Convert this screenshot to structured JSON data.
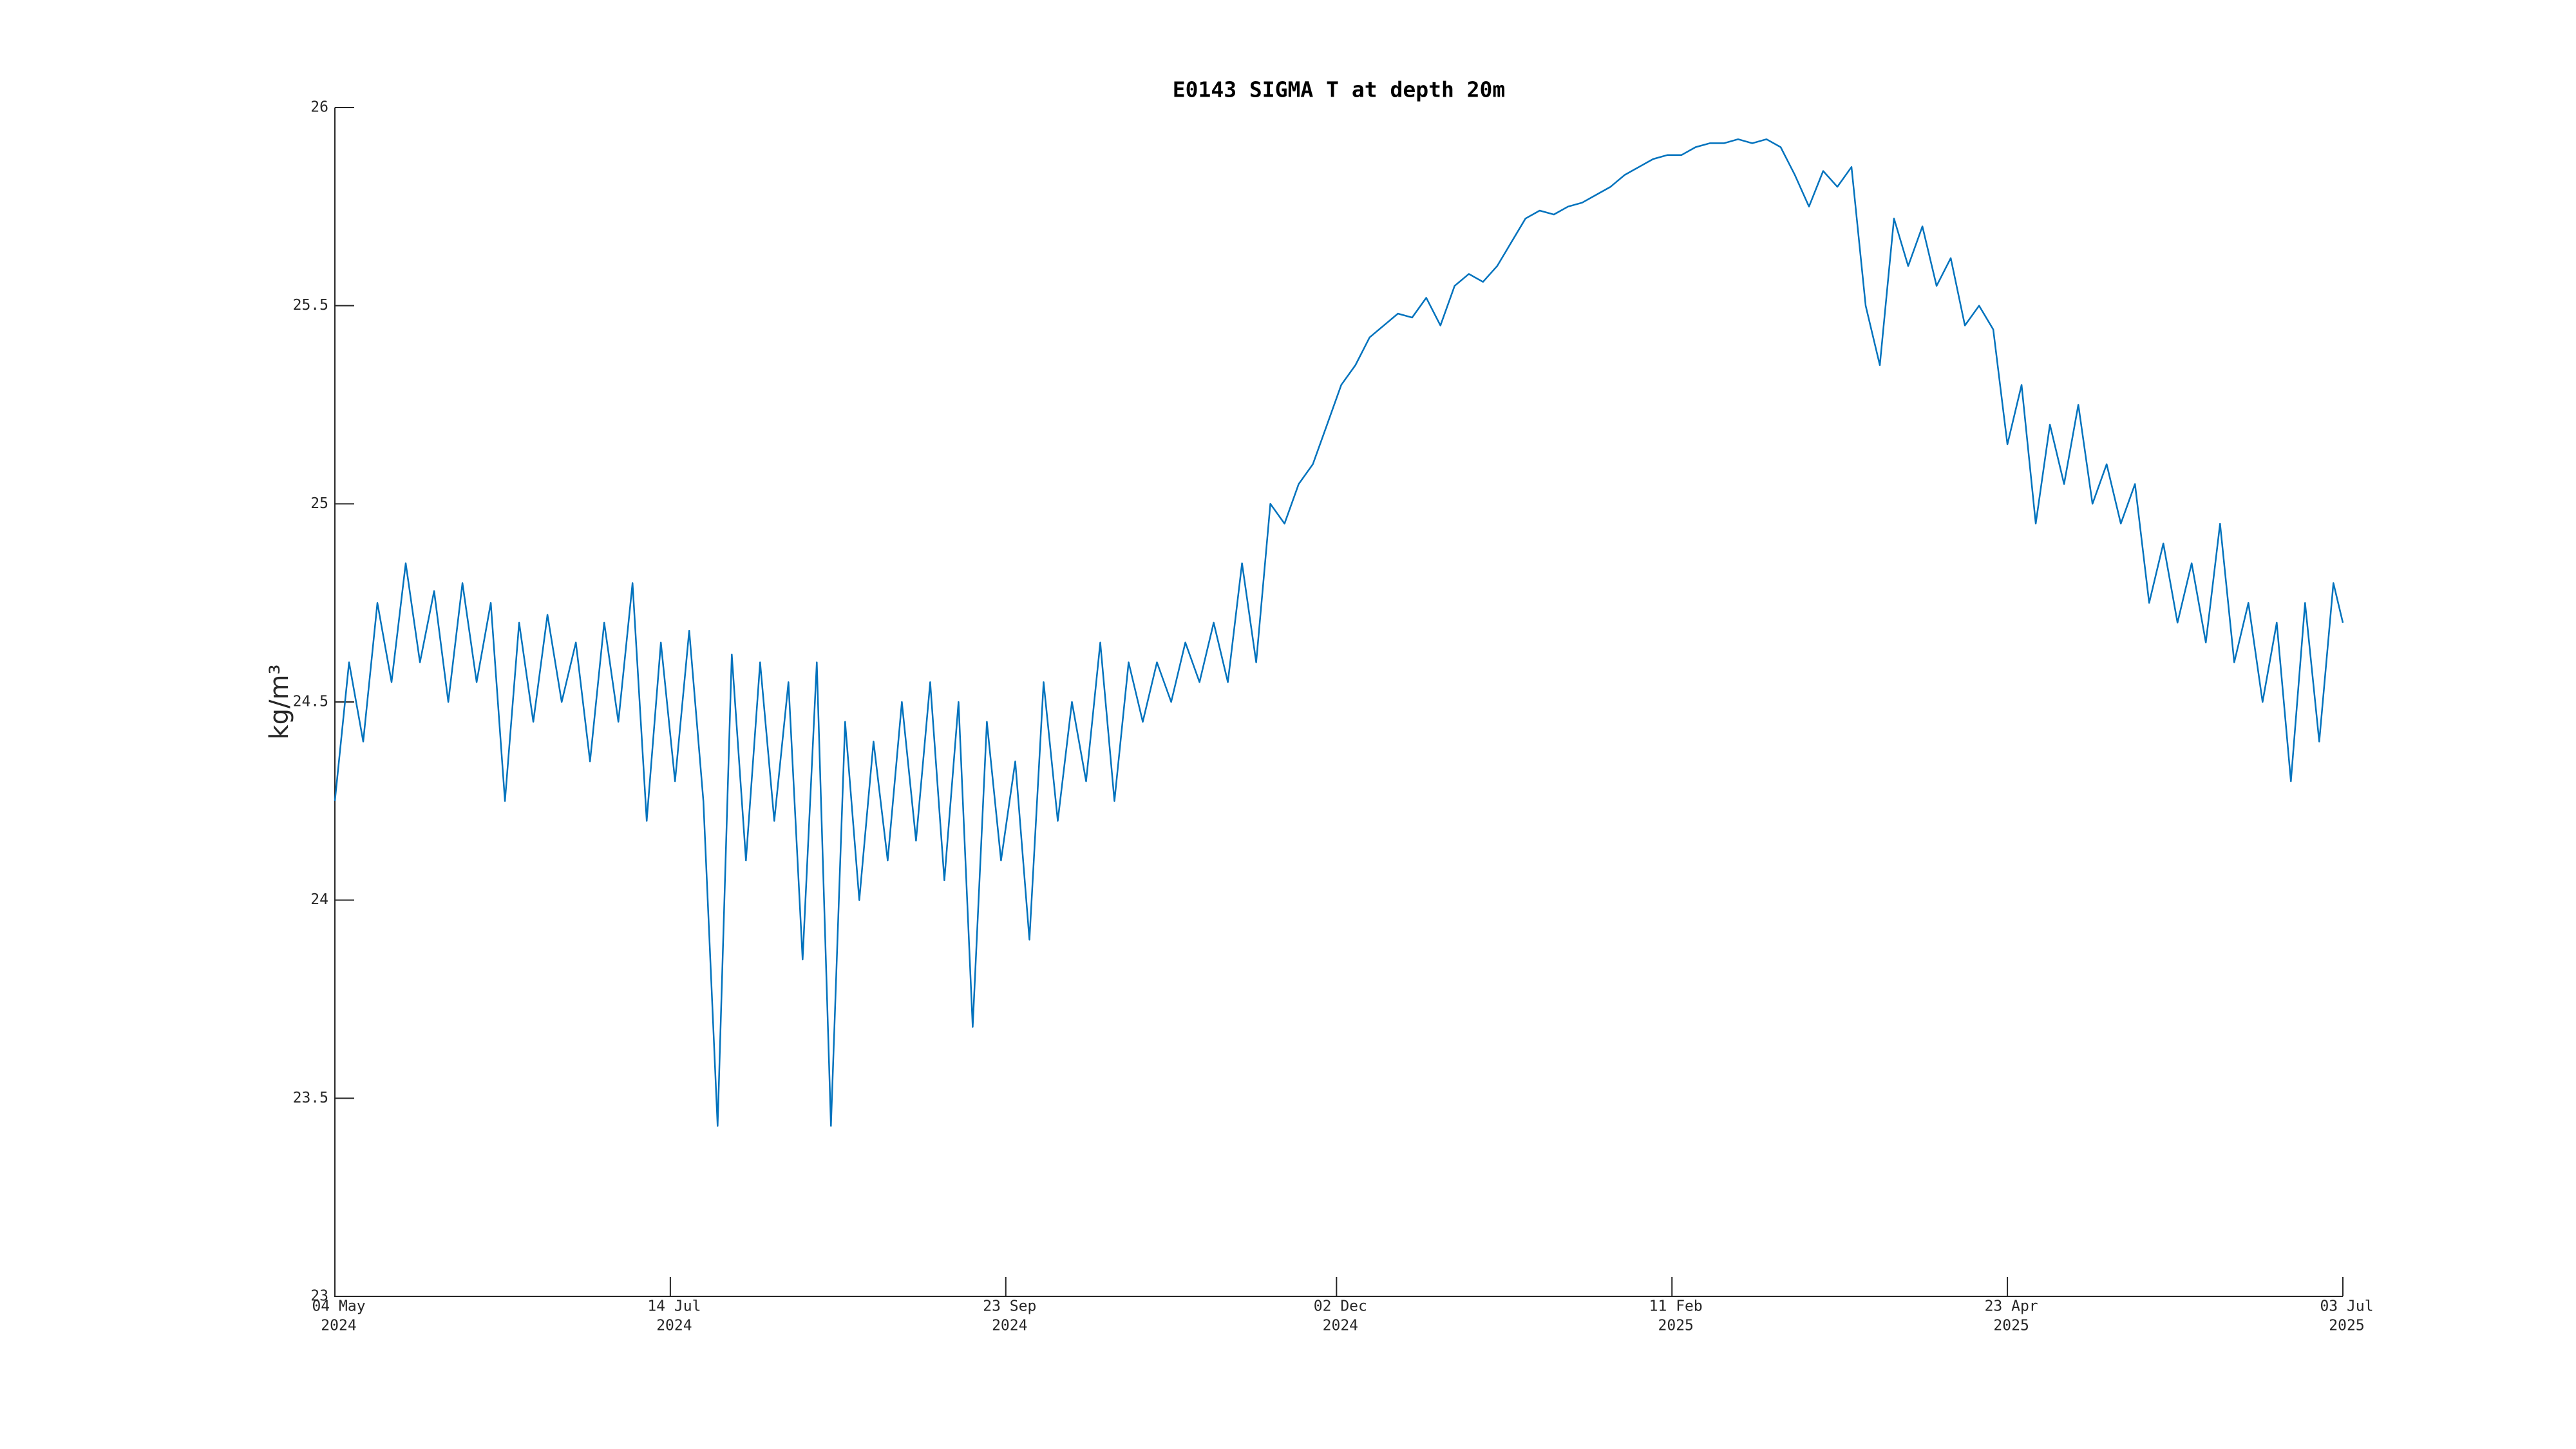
{
  "chart_data": {
    "type": "line",
    "title": "E0143 SIGMA T at depth 20m",
    "ylabel": "kg/m³",
    "color": "#0072BD",
    "xlim": [
      "2024-05-04",
      "2025-07-03"
    ],
    "xticks": [
      {
        "value": "2024-05-04",
        "label": [
          "04 May",
          "2024"
        ]
      },
      {
        "value": "2024-07-14",
        "label": [
          "14 Jul",
          "2024"
        ]
      },
      {
        "value": "2024-09-23",
        "label": [
          "23 Sep",
          "2024"
        ]
      },
      {
        "value": "2024-12-02",
        "label": [
          "02 Dec",
          "2024"
        ]
      },
      {
        "value": "2025-02-11",
        "label": [
          "11 Feb",
          "2025"
        ]
      },
      {
        "value": "2025-04-23",
        "label": [
          "23 Apr",
          "2025"
        ]
      },
      {
        "value": "2025-07-03",
        "label": [
          "03 Jul",
          "2025"
        ]
      }
    ],
    "ylim": [
      23,
      26
    ],
    "yticks": [
      23,
      23.5,
      24,
      24.5,
      25,
      25.5,
      26
    ],
    "x": [
      "2024-05-04",
      "2024-05-07",
      "2024-05-10",
      "2024-05-13",
      "2024-05-16",
      "2024-05-19",
      "2024-05-22",
      "2024-05-25",
      "2024-05-28",
      "2024-05-31",
      "2024-06-03",
      "2024-06-06",
      "2024-06-09",
      "2024-06-12",
      "2024-06-15",
      "2024-06-18",
      "2024-06-21",
      "2024-06-24",
      "2024-06-27",
      "2024-06-30",
      "2024-07-03",
      "2024-07-06",
      "2024-07-09",
      "2024-07-12",
      "2024-07-15",
      "2024-07-18",
      "2024-07-21",
      "2024-07-24",
      "2024-07-27",
      "2024-07-30",
      "2024-08-02",
      "2024-08-05",
      "2024-08-08",
      "2024-08-11",
      "2024-08-14",
      "2024-08-17",
      "2024-08-20",
      "2024-08-23",
      "2024-08-26",
      "2024-08-29",
      "2024-09-01",
      "2024-09-04",
      "2024-09-07",
      "2024-09-10",
      "2024-09-13",
      "2024-09-16",
      "2024-09-19",
      "2024-09-22",
      "2024-09-25",
      "2024-09-28",
      "2024-10-01",
      "2024-10-04",
      "2024-10-07",
      "2024-10-10",
      "2024-10-13",
      "2024-10-16",
      "2024-10-19",
      "2024-10-22",
      "2024-10-25",
      "2024-10-28",
      "2024-10-31",
      "2024-11-03",
      "2024-11-06",
      "2024-11-09",
      "2024-11-12",
      "2024-11-15",
      "2024-11-18",
      "2024-11-21",
      "2024-11-24",
      "2024-11-27",
      "2024-11-30",
      "2024-12-03",
      "2024-12-06",
      "2024-12-09",
      "2024-12-12",
      "2024-12-15",
      "2024-12-18",
      "2024-12-21",
      "2024-12-24",
      "2024-12-27",
      "2024-12-30",
      "2025-01-02",
      "2025-01-05",
      "2025-01-08",
      "2025-01-11",
      "2025-01-14",
      "2025-01-17",
      "2025-01-20",
      "2025-01-23",
      "2025-01-26",
      "2025-01-29",
      "2025-02-01",
      "2025-02-04",
      "2025-02-07",
      "2025-02-10",
      "2025-02-13",
      "2025-02-16",
      "2025-02-19",
      "2025-02-22",
      "2025-02-25",
      "2025-02-28",
      "2025-03-03",
      "2025-03-06",
      "2025-03-09",
      "2025-03-12",
      "2025-03-15",
      "2025-03-18",
      "2025-03-21",
      "2025-03-24",
      "2025-03-27",
      "2025-03-30",
      "2025-04-02",
      "2025-04-05",
      "2025-04-08",
      "2025-04-11",
      "2025-04-14",
      "2025-04-17",
      "2025-04-20",
      "2025-04-23",
      "2025-04-26",
      "2025-04-29",
      "2025-05-02",
      "2025-05-05",
      "2025-05-08",
      "2025-05-11",
      "2025-05-14",
      "2025-05-17",
      "2025-05-20",
      "2025-05-23",
      "2025-05-26",
      "2025-05-29",
      "2025-06-01",
      "2025-06-04",
      "2025-06-07",
      "2025-06-10",
      "2025-06-13",
      "2025-06-16",
      "2025-06-19",
      "2025-06-22",
      "2025-06-25",
      "2025-06-28",
      "2025-07-01",
      "2025-07-03"
    ],
    "values": [
      24.25,
      24.6,
      24.4,
      24.75,
      24.55,
      24.85,
      24.6,
      24.78,
      24.5,
      24.8,
      24.55,
      24.75,
      24.25,
      24.7,
      24.45,
      24.72,
      24.5,
      24.65,
      24.35,
      24.7,
      24.45,
      24.8,
      24.2,
      24.65,
      24.3,
      24.68,
      24.25,
      23.43,
      24.62,
      24.1,
      24.6,
      24.2,
      24.55,
      23.85,
      24.6,
      23.43,
      24.45,
      24.0,
      24.4,
      24.1,
      24.5,
      24.15,
      24.55,
      24.05,
      24.5,
      23.68,
      24.45,
      24.1,
      24.35,
      23.9,
      24.55,
      24.2,
      24.5,
      24.3,
      24.65,
      24.25,
      24.6,
      24.45,
      24.6,
      24.5,
      24.65,
      24.55,
      24.7,
      24.55,
      24.85,
      24.6,
      25.0,
      24.95,
      25.05,
      25.1,
      25.2,
      25.3,
      25.35,
      25.42,
      25.45,
      25.48,
      25.47,
      25.52,
      25.45,
      25.55,
      25.58,
      25.56,
      25.6,
      25.66,
      25.72,
      25.74,
      25.73,
      25.75,
      25.76,
      25.78,
      25.8,
      25.83,
      25.85,
      25.87,
      25.88,
      25.88,
      25.9,
      25.91,
      25.91,
      25.92,
      25.91,
      25.92,
      25.9,
      25.83,
      25.75,
      25.84,
      25.8,
      25.85,
      25.5,
      25.35,
      25.72,
      25.6,
      25.7,
      25.55,
      25.62,
      25.45,
      25.5,
      25.44,
      25.15,
      25.3,
      24.95,
      25.2,
      25.05,
      25.25,
      25.0,
      25.1,
      24.95,
      25.05,
      24.75,
      24.9,
      24.7,
      24.85,
      24.65,
      24.95,
      24.6,
      24.75,
      24.5,
      24.7,
      24.3,
      24.75,
      24.4,
      24.8,
      24.7
    ]
  }
}
